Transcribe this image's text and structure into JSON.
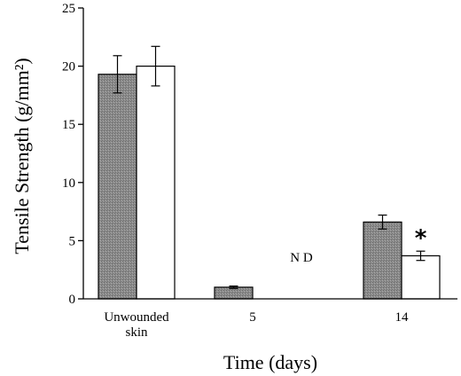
{
  "chart_data": {
    "type": "bar",
    "title": "",
    "xlabel": "Time (days)",
    "ylabel": "Tensile Strength (g/mm²)",
    "ylim": [
      0,
      25
    ],
    "yticks": [
      "0",
      "5",
      "10",
      "15",
      "20",
      "25"
    ],
    "categories": [
      {
        "lines": [
          "Unwounded",
          "skin"
        ]
      },
      {
        "lines": [
          "5"
        ]
      },
      {
        "lines": [
          "14"
        ]
      }
    ],
    "series": [
      {
        "color": "#8c8c8c",
        "pattern": "stipple",
        "values": [
          19.3,
          1.0,
          6.6
        ],
        "errors": [
          1.6,
          0.1,
          0.6
        ]
      },
      {
        "color": "#ffffff",
        "values": [
          20.0,
          null,
          3.7
        ],
        "errors": [
          1.7,
          null,
          0.4
        ]
      }
    ],
    "annotations": {
      "nd_text": "N D",
      "significance": "*"
    },
    "grid": false,
    "legend": "none"
  }
}
